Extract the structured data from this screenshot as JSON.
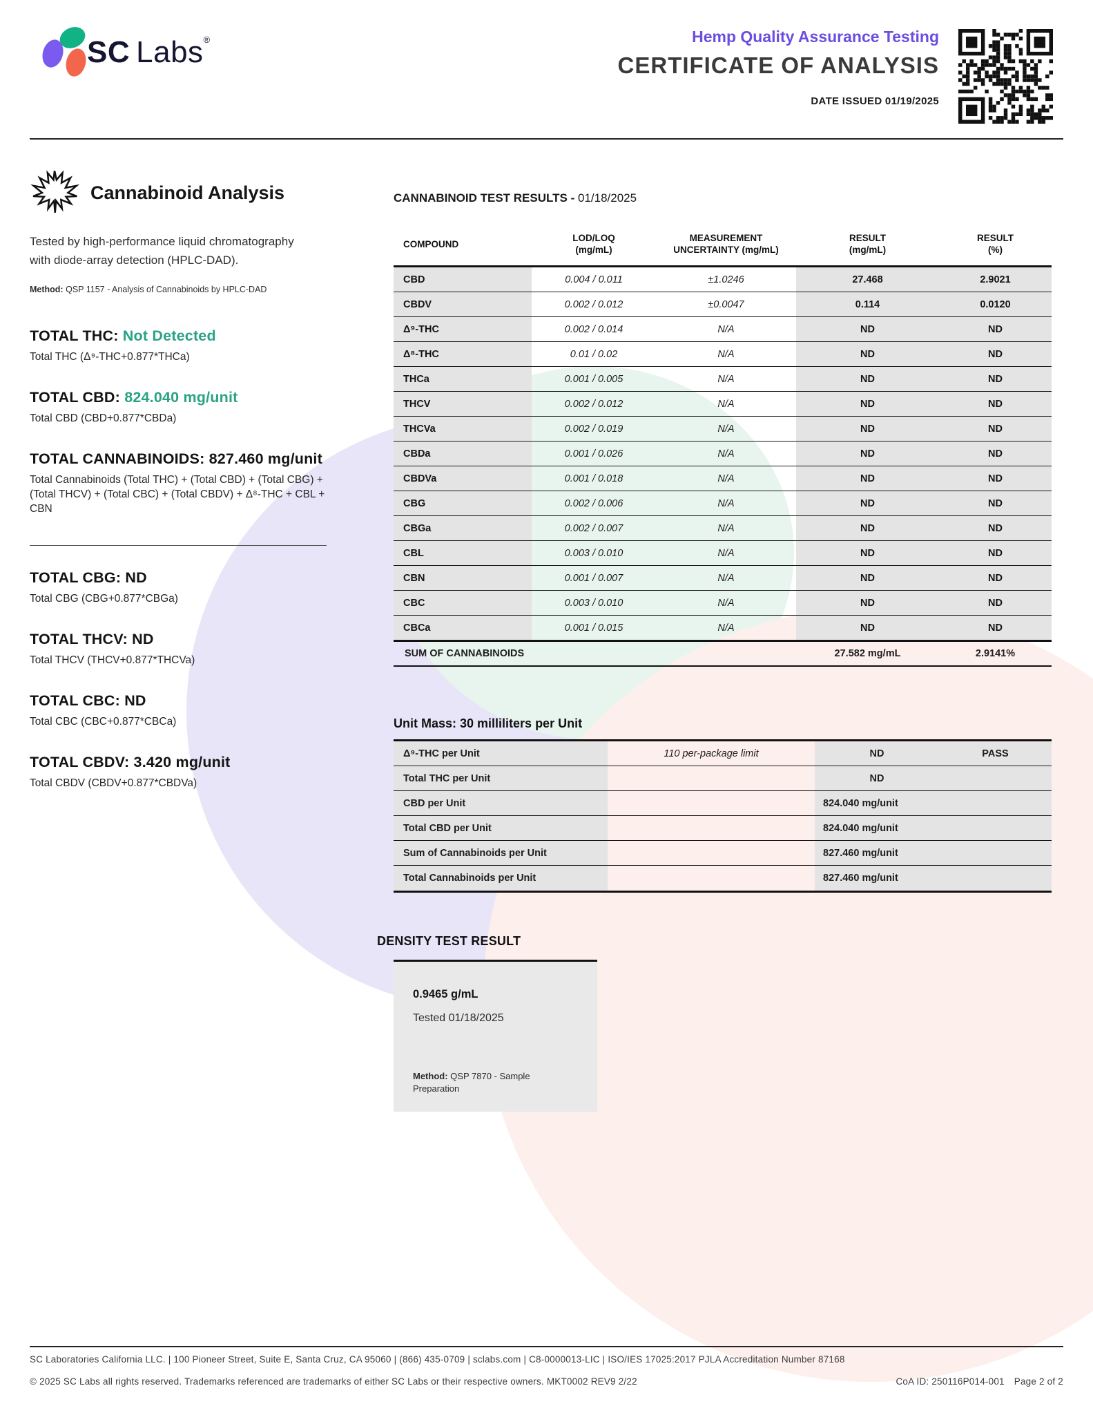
{
  "colors": {
    "accent_teal": "#29A286",
    "accent_purple": "#6B4EE0",
    "logo_green": "#12B287",
    "logo_purple": "#7B5BEF",
    "logo_orange": "#F2664B",
    "table_gray": "#E4E4E4"
  },
  "header": {
    "logo": {
      "sc": "SC",
      "labs": "Labs",
      "reg": "®"
    },
    "program": "Hemp Quality Assurance Testing",
    "doc_title": "CERTIFICATE OF ANALYSIS",
    "date_issued": "DATE ISSUED 01/19/2025"
  },
  "analysis": {
    "section_title": "Cannabinoid Analysis",
    "description": "Tested by high-performance liquid chromatography with diode-array detection (HPLC-DAD).",
    "method_label": "Method:",
    "method": "QSP 1157 - Analysis of Cannabinoids by HPLC-DAD",
    "totals": [
      {
        "label": "TOTAL THC:",
        "value": "Not Detected",
        "accent": true,
        "formula": "Total THC (Δ⁹-THC+0.877*THCa)"
      },
      {
        "label": "TOTAL CBD:",
        "value": "824.040 mg/unit",
        "accent": true,
        "formula": "Total CBD (CBD+0.877*CBDa)"
      },
      {
        "label": "TOTAL CANNABINOIDS:",
        "value": "827.460 mg/unit",
        "accent": false,
        "formula": "Total Cannabinoids (Total THC) + (Total CBD) + (Total CBG) + (Total THCV) + (Total CBC) + (Total CBDV) + Δ⁸-THC + CBL + CBN"
      },
      {
        "label": "TOTAL CBG:",
        "value": "ND",
        "accent": false,
        "formula": "Total CBG (CBG+0.877*CBGa)"
      },
      {
        "label": "TOTAL THCV:",
        "value": "ND",
        "accent": false,
        "formula": "Total THCV (THCV+0.877*THCVa)"
      },
      {
        "label": "TOTAL CBC:",
        "value": "ND",
        "accent": false,
        "formula": "Total CBC (CBC+0.877*CBCa)"
      },
      {
        "label": "TOTAL CBDV:",
        "value": "3.420 mg/unit",
        "accent": false,
        "formula": "Total CBDV (CBDV+0.877*CBDVa)"
      }
    ]
  },
  "results": {
    "title": "CANNABINOID TEST RESULTS -",
    "date": "01/18/2025",
    "columns": [
      {
        "l1": "COMPOUND",
        "l2": ""
      },
      {
        "l1": "LOD/LOQ",
        "l2": "(mg/mL)"
      },
      {
        "l1": "MEASUREMENT",
        "l2": "UNCERTAINTY (mg/mL)"
      },
      {
        "l1": "RESULT",
        "l2": "(mg/mL)"
      },
      {
        "l1": "RESULT",
        "l2": "(%)"
      }
    ],
    "rows": [
      {
        "compound": "CBD",
        "lod_loq": "0.004 / 0.011",
        "uncertainty": "±1.0246",
        "result_mg": "27.468",
        "result_pct": "2.9021"
      },
      {
        "compound": "CBDV",
        "lod_loq": "0.002 / 0.012",
        "uncertainty": "±0.0047",
        "result_mg": "0.114",
        "result_pct": "0.0120"
      },
      {
        "compound": "Δ⁹-THC",
        "lod_loq": "0.002 / 0.014",
        "uncertainty": "N/A",
        "result_mg": "ND",
        "result_pct": "ND"
      },
      {
        "compound": "Δ⁸-THC",
        "lod_loq": "0.01 / 0.02",
        "uncertainty": "N/A",
        "result_mg": "ND",
        "result_pct": "ND"
      },
      {
        "compound": "THCa",
        "lod_loq": "0.001 / 0.005",
        "uncertainty": "N/A",
        "result_mg": "ND",
        "result_pct": "ND"
      },
      {
        "compound": "THCV",
        "lod_loq": "0.002 / 0.012",
        "uncertainty": "N/A",
        "result_mg": "ND",
        "result_pct": "ND"
      },
      {
        "compound": "THCVa",
        "lod_loq": "0.002 / 0.019",
        "uncertainty": "N/A",
        "result_mg": "ND",
        "result_pct": "ND"
      },
      {
        "compound": "CBDa",
        "lod_loq": "0.001 / 0.026",
        "uncertainty": "N/A",
        "result_mg": "ND",
        "result_pct": "ND"
      },
      {
        "compound": "CBDVa",
        "lod_loq": "0.001 / 0.018",
        "uncertainty": "N/A",
        "result_mg": "ND",
        "result_pct": "ND"
      },
      {
        "compound": "CBG",
        "lod_loq": "0.002 / 0.006",
        "uncertainty": "N/A",
        "result_mg": "ND",
        "result_pct": "ND"
      },
      {
        "compound": "CBGa",
        "lod_loq": "0.002 / 0.007",
        "uncertainty": "N/A",
        "result_mg": "ND",
        "result_pct": "ND"
      },
      {
        "compound": "CBL",
        "lod_loq": "0.003 / 0.010",
        "uncertainty": "N/A",
        "result_mg": "ND",
        "result_pct": "ND"
      },
      {
        "compound": "CBN",
        "lod_loq": "0.001 / 0.007",
        "uncertainty": "N/A",
        "result_mg": "ND",
        "result_pct": "ND"
      },
      {
        "compound": "CBC",
        "lod_loq": "0.003 / 0.010",
        "uncertainty": "N/A",
        "result_mg": "ND",
        "result_pct": "ND"
      },
      {
        "compound": "CBCa",
        "lod_loq": "0.001 / 0.015",
        "uncertainty": "N/A",
        "result_mg": "ND",
        "result_pct": "ND"
      }
    ],
    "sum": {
      "label": "SUM OF CANNABINOIDS",
      "result_mg": "27.582 mg/mL",
      "result_pct": "2.9141%"
    }
  },
  "unit_mass": {
    "heading": "Unit Mass: 30 milliliters per Unit",
    "rows": [
      {
        "label": "Δ⁹-THC per Unit",
        "limit": "110 per-package limit",
        "value": "ND",
        "status": "PASS"
      },
      {
        "label": "Total THC per Unit",
        "limit": "",
        "value": "ND",
        "status": ""
      },
      {
        "label": "CBD per Unit",
        "limit": "",
        "value": "824.040 mg/unit",
        "status": ""
      },
      {
        "label": "Total CBD per Unit",
        "limit": "",
        "value": "824.040 mg/unit",
        "status": ""
      },
      {
        "label": "Sum of Cannabinoids per Unit",
        "limit": "",
        "value": "827.460 mg/unit",
        "status": ""
      },
      {
        "label": "Total Cannabinoids per Unit",
        "limit": "",
        "value": "827.460 mg/unit",
        "status": ""
      }
    ]
  },
  "density": {
    "heading": "DENSITY TEST RESULT",
    "value": "0.9465 g/mL",
    "tested": "Tested 01/18/2025",
    "method_label": "Method:",
    "method": "QSP 7870 - Sample Preparation"
  },
  "footer": {
    "line1": "SC Laboratories California LLC. | 100 Pioneer Street, Suite E, Santa Cruz, CA 95060 | (866) 435-0709 | sclabs.com | C8-0000013-LIC | ISO/IES 17025:2017 PJLA Accreditation Number 87168",
    "line2": "© 2025 SC Labs all rights reserved. Trademarks referenced are trademarks of either SC Labs or their respective owners. MKT0002 REV9 2/22",
    "coa_id": "CoA ID: 250116P014-001",
    "page": "Page 2 of 2"
  }
}
